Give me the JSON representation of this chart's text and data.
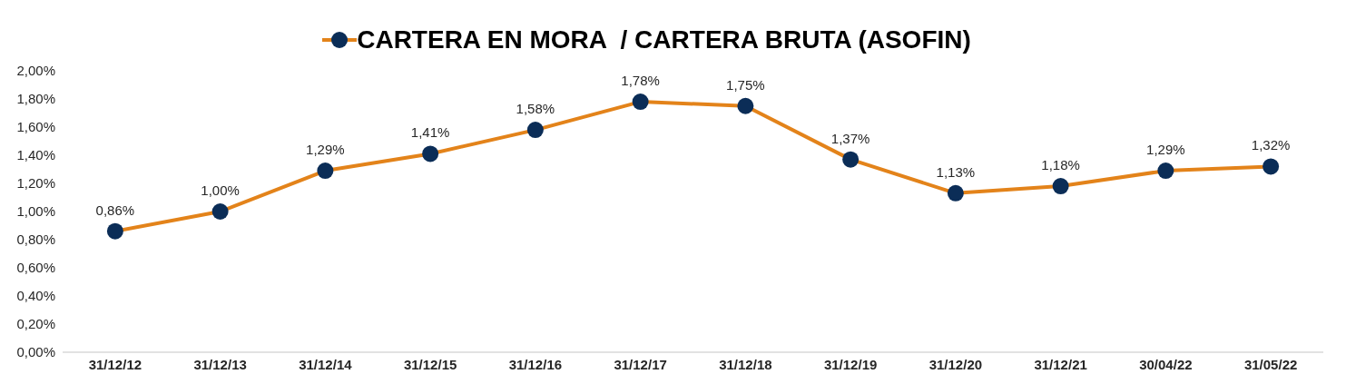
{
  "chart_data": {
    "type": "line",
    "categories": [
      "31/12/12",
      "31/12/13",
      "31/12/14",
      "31/12/15",
      "31/12/16",
      "31/12/17",
      "31/12/18",
      "31/12/19",
      "31/12/20",
      "31/12/21",
      "30/04/22",
      "31/05/22"
    ],
    "series": [
      {
        "name": "CARTERA EN MORA  / CARTERA BRUTA (ASOFIN)",
        "color": "#e3831a",
        "colors": [
          "#0b2d57",
          "#0b2d57",
          "#0b2d57",
          "#0b2d57",
          "#0b2d57",
          "#0b2d57",
          "#0b2d57",
          "#0b2d57",
          "#0b2d57",
          "#0b2d57",
          "#0b2d57",
          "#0b2d57"
        ],
        "values": [
          0.86,
          1.0,
          1.29,
          1.41,
          1.58,
          1.78,
          1.75,
          1.37,
          1.13,
          1.18,
          1.29,
          1.32
        ],
        "value_labels": [
          "0,86%",
          "1,00%",
          "1,29%",
          "1,41%",
          "1,58%",
          "1,78%",
          "1,75%",
          "1,37%",
          "1,13%",
          "1,18%",
          "1,29%",
          "1,32%"
        ]
      }
    ],
    "ylim": [
      0,
      2
    ],
    "yticks": [
      {
        "value": 0,
        "label": "0,00%"
      },
      {
        "value": 0.2,
        "label": "0,20%"
      },
      {
        "value": 0.4,
        "label": "0,40%"
      },
      {
        "value": 0.6,
        "label": "0,60%"
      },
      {
        "value": 0.8,
        "label": "0,80%"
      },
      {
        "value": 1,
        "label": "1,00%"
      },
      {
        "value": 1.2,
        "label": "1,20%"
      },
      {
        "value": 1.4,
        "label": "1,40%"
      },
      {
        "value": 1.6,
        "label": "1,60%"
      },
      {
        "value": 1.8,
        "label": "1,80%"
      },
      {
        "value": 2,
        "label": "2,00%"
      }
    ],
    "grid": false,
    "legend": "top",
    "marker": "circle",
    "line_style": "solid"
  }
}
